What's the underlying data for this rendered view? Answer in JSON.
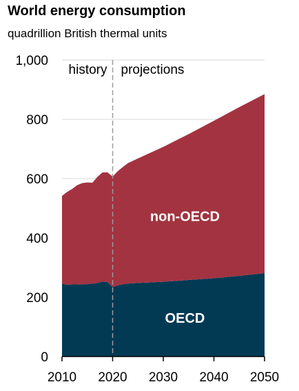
{
  "title": "World energy consumption",
  "subtitle": "quadrillion British thermal units",
  "colors": {
    "oecd": "#023A54",
    "non_oecd": "#A33340",
    "divider": "#9B9B9B",
    "grid": "#D9D9D9"
  },
  "chart_data": {
    "type": "area",
    "stacked": true,
    "title": "World energy consumption",
    "ylabel": "quadrillion British thermal units",
    "xlabel": "",
    "xlim": [
      2010,
      2050
    ],
    "ylim": [
      0,
      1000
    ],
    "x_ticks": [
      2010,
      2020,
      2030,
      2040,
      2050
    ],
    "y_ticks": [
      0,
      200,
      400,
      600,
      800,
      1000
    ],
    "y_tick_labels": [
      "0",
      "200",
      "400",
      "600",
      "800",
      "1,000"
    ],
    "grid": "horizontal",
    "regions": [
      {
        "label": "history",
        "from": 2010,
        "to": 2020
      },
      {
        "label": "projections",
        "from": 2020,
        "to": 2050
      }
    ],
    "divider_x": 2020,
    "x": [
      2010,
      2011,
      2012,
      2013,
      2014,
      2015,
      2016,
      2017,
      2018,
      2019,
      2020,
      2021,
      2022,
      2023,
      2025,
      2030,
      2035,
      2040,
      2045,
      2050
    ],
    "series": [
      {
        "name": "OECD",
        "values": [
          246,
          242,
          243,
          243,
          244,
          244,
          246,
          248,
          253,
          251,
          234,
          240,
          244,
          246,
          248,
          252,
          258,
          264,
          272,
          281
        ]
      },
      {
        "name": "non-OECD",
        "values": [
          296,
          313,
          322,
          335,
          341,
          343,
          340,
          358,
          368,
          370,
          373,
          385,
          395,
          406,
          420,
          455,
          492,
          531,
          569,
          604
        ]
      }
    ]
  }
}
